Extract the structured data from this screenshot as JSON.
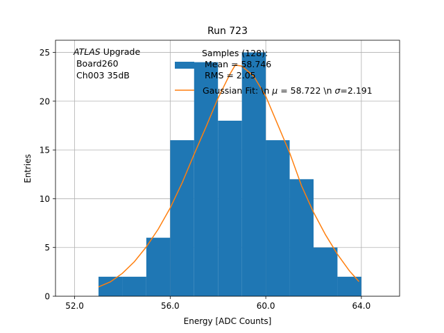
{
  "chart_data": {
    "type": "bar",
    "title": "Run 723",
    "xlabel": "Energy [ADC Counts]",
    "ylabel": "Entries",
    "xlim": [
      51.2,
      65.6
    ],
    "ylim": [
      0,
      26.25
    ],
    "xticks": [
      52.0,
      56.0,
      60.0,
      64.0
    ],
    "xtick_labels": [
      "52.0",
      "56.0",
      "60.0",
      "64.0"
    ],
    "yticks": [
      0,
      5,
      10,
      15,
      20,
      25
    ],
    "ytick_labels": [
      "0",
      "5",
      "10",
      "15",
      "20",
      "25"
    ],
    "grid": true,
    "legend_position": "top-right",
    "histogram": {
      "name": "Samples (128):\n Mean = 58.746\n RMS = 2.05",
      "color": "#1f77b4",
      "bin_edges": [
        53,
        54,
        55,
        56,
        57,
        58,
        59,
        60,
        61,
        62,
        63,
        64
      ],
      "counts": [
        2,
        2,
        6,
        16,
        24,
        18,
        25,
        16,
        12,
        5,
        2
      ]
    },
    "fit": {
      "name": "Gaussian Fit: \\n $\\mu$ = 58.722 \\n $\\sigma$=2.191",
      "color": "#ff7f0e",
      "x": [
        53.0,
        53.5,
        54.0,
        54.5,
        55.0,
        55.5,
        56.0,
        56.5,
        57.0,
        57.5,
        58.0,
        58.5,
        58.722,
        59.0,
        59.5,
        60.0,
        60.5,
        61.0,
        61.5,
        62.0,
        62.5,
        63.0,
        63.5,
        63.9
      ],
      "y": [
        0.96,
        1.48,
        2.35,
        3.54,
        5.06,
        6.88,
        9.05,
        11.63,
        14.55,
        17.37,
        20.3,
        22.77,
        23.7,
        23.6,
        22.55,
        20.5,
        17.6,
        14.7,
        11.3,
        8.6,
        6.3,
        4.3,
        2.6,
        1.5
      ]
    },
    "annotation": {
      "line1_italic": "ATLAS",
      "line1_rest": " Upgrade",
      "line2": " Board260",
      "line3": " Ch003 35dB"
    },
    "legend": {
      "hist_line1": "Samples (128):",
      "hist_line2": " Mean = 58.746",
      "hist_line3": " RMS = 2.05",
      "fit_prefix": "Gaussian Fit: \\n ",
      "fit_mu": "μ",
      "fit_mid": " = 58.722 \\n ",
      "fit_sigma": "σ",
      "fit_suffix": "=2.191"
    }
  }
}
